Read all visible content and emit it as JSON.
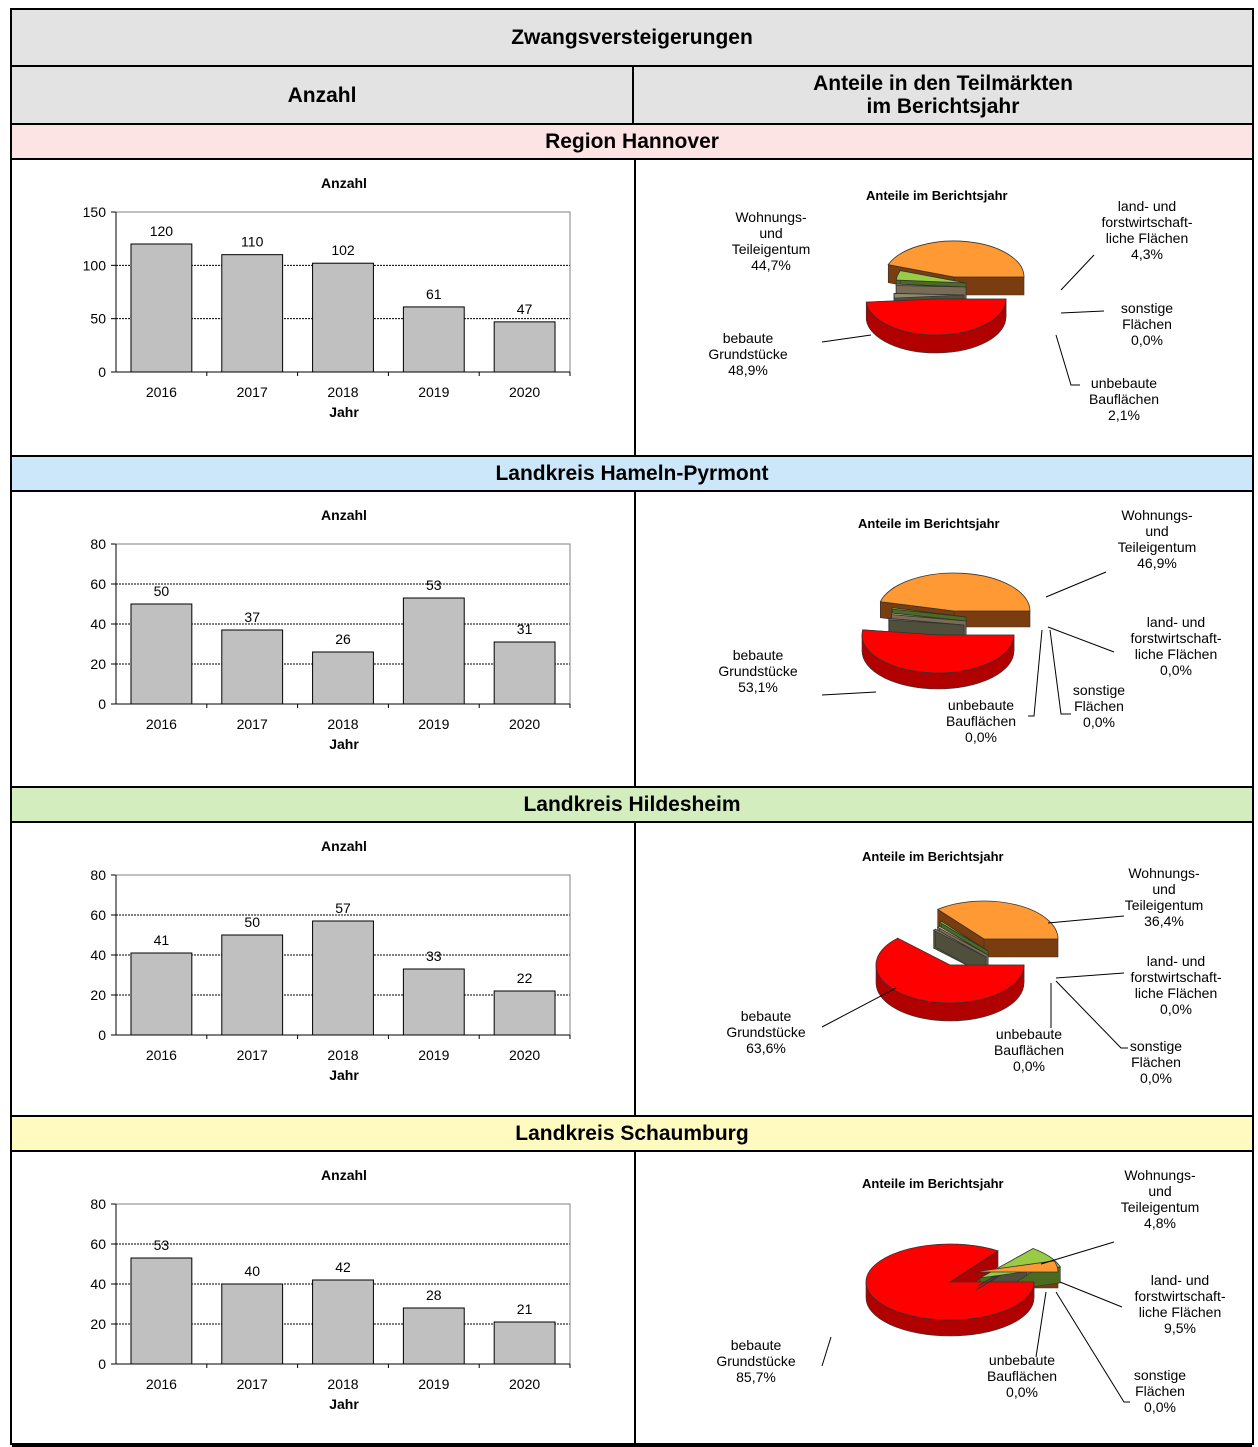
{
  "title": "Zwangsversteigerungen",
  "header": {
    "left": "Anzahl",
    "right_line1": "Anteile in den Teilmärkten",
    "right_line2": "im Berichtsjahr"
  },
  "colors": {
    "title_bg": "#e3e3e3",
    "bar_fill": "#c0c0c0",
    "pie_bebaute": "#ff0000",
    "pie_wohnung": "#ff9933",
    "pie_land": "#99cc44",
    "pie_sonstige": "#d9c09f",
    "pie_unbebaute": "#8c8c70"
  },
  "regions": [
    {
      "name": "Region Hannover",
      "bg": "#fde4e4",
      "chart_data": {
        "type": "bar",
        "title": "Anzahl",
        "xlabel": "Jahr",
        "ylabel": "",
        "categories": [
          "2016",
          "2017",
          "2018",
          "2019",
          "2020"
        ],
        "values": [
          120,
          110,
          102,
          61,
          47
        ],
        "ylim": [
          0,
          150
        ],
        "yticks": [
          0,
          50,
          100,
          150
        ],
        "grid": true
      },
      "pie": {
        "type": "pie",
        "title": "Anteile im Berichtsjahr",
        "slices": [
          {
            "lines": [
              "bebaute",
              "Grundstücke"
            ],
            "value": "48,9%",
            "share": 48.9
          },
          {
            "lines": [
              "Wohnungs-",
              "und",
              "Teileigentum"
            ],
            "value": "44,7%",
            "share": 44.7
          },
          {
            "lines": [
              "land- und",
              "forstwirtschaft-",
              "liche Flächen"
            ],
            "value": "4,3%",
            "share": 4.3
          },
          {
            "lines": [
              "sonstige",
              "Flächen"
            ],
            "value": "0,0%",
            "share": 0.0
          },
          {
            "lines": [
              "unbebaute",
              "Bauflächen"
            ],
            "value": "2,1%",
            "share": 2.1
          }
        ]
      }
    },
    {
      "name": "Landkreis Hameln-Pyrmont",
      "bg": "#cce6fa",
      "chart_data": {
        "type": "bar",
        "title": "Anzahl",
        "xlabel": "Jahr",
        "ylabel": "",
        "categories": [
          "2016",
          "2017",
          "2018",
          "2019",
          "2020"
        ],
        "values": [
          50,
          37,
          26,
          53,
          31
        ],
        "ylim": [
          0,
          80
        ],
        "yticks": [
          0,
          20,
          40,
          60,
          80
        ],
        "grid": true
      },
      "pie": {
        "type": "pie",
        "title": "Anteile im Berichtsjahr",
        "slices": [
          {
            "lines": [
              "bebaute",
              "Grundstücke"
            ],
            "value": "53,1%",
            "share": 53.1
          },
          {
            "lines": [
              "Wohnungs-",
              "und",
              "Teileigentum"
            ],
            "value": "46,9%",
            "share": 46.9
          },
          {
            "lines": [
              "land- und",
              "forstwirtschaft-",
              "liche Flächen"
            ],
            "value": "0,0%",
            "share": 0.0
          },
          {
            "lines": [
              "sonstige",
              "Flächen"
            ],
            "value": "0,0%",
            "share": 0.0
          },
          {
            "lines": [
              "unbebaute",
              "Bauflächen"
            ],
            "value": "0,0%",
            "share": 0.0
          }
        ]
      }
    },
    {
      "name": "Landkreis Hildesheim",
      "bg": "#d3edbf",
      "chart_data": {
        "type": "bar",
        "title": "Anzahl",
        "xlabel": "Jahr",
        "ylabel": "",
        "categories": [
          "2016",
          "2017",
          "2018",
          "2019",
          "2020"
        ],
        "values": [
          41,
          50,
          57,
          33,
          22
        ],
        "ylim": [
          0,
          80
        ],
        "yticks": [
          0,
          20,
          40,
          60,
          80
        ],
        "grid": true
      },
      "pie": {
        "type": "pie",
        "title": "Anteile im Berichtsjahr",
        "slices": [
          {
            "lines": [
              "bebaute",
              "Grundstücke"
            ],
            "value": "63,6%",
            "share": 63.6
          },
          {
            "lines": [
              "Wohnungs-",
              "und",
              "Teileigentum"
            ],
            "value": "36,4%",
            "share": 36.4
          },
          {
            "lines": [
              "land- und",
              "forstwirtschaft-",
              "liche Flächen"
            ],
            "value": "0,0%",
            "share": 0.0
          },
          {
            "lines": [
              "sonstige",
              "Flächen"
            ],
            "value": "0,0%",
            "share": 0.0
          },
          {
            "lines": [
              "unbebaute",
              "Bauflächen"
            ],
            "value": "0,0%",
            "share": 0.0
          }
        ]
      }
    },
    {
      "name": "Landkreis Schaumburg",
      "bg": "#fffac0",
      "chart_data": {
        "type": "bar",
        "title": "Anzahl",
        "xlabel": "Jahr",
        "ylabel": "",
        "categories": [
          "2016",
          "2017",
          "2018",
          "2019",
          "2020"
        ],
        "values": [
          53,
          40,
          42,
          28,
          21
        ],
        "ylim": [
          0,
          80
        ],
        "yticks": [
          0,
          20,
          40,
          60,
          80
        ],
        "grid": true
      },
      "pie": {
        "type": "pie",
        "title": "Anteile im Berichtsjahr",
        "slices": [
          {
            "lines": [
              "bebaute",
              "Grundstücke"
            ],
            "value": "85,7%",
            "share": 85.7
          },
          {
            "lines": [
              "Wohnungs-",
              "und",
              "Teileigentum"
            ],
            "value": "4,8%",
            "share": 4.8
          },
          {
            "lines": [
              "land- und",
              "forstwirtschaft-",
              "liche Flächen"
            ],
            "value": "9,5%",
            "share": 9.5
          },
          {
            "lines": [
              "sonstige",
              "Flächen"
            ],
            "value": "0,0%",
            "share": 0.0
          },
          {
            "lines": [
              "unbebaute",
              "Bauflächen"
            ],
            "value": "0,0%",
            "share": 0.0
          }
        ]
      }
    }
  ]
}
